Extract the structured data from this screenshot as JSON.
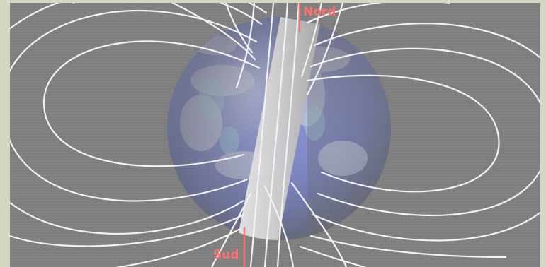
{
  "labels": {
    "north": "Nord",
    "south": "Sud"
  },
  "colors": {
    "frame": "#d5d7c3",
    "background": "#808080",
    "field_lines": "#f2f2f2",
    "pole_markers": "#ff6e6e",
    "earth_ocean": "#7f89d6",
    "axis_band": "#c9c9c9"
  },
  "icons": {
    "planet": "earth-globe",
    "magnetic_field": "field-lines"
  }
}
